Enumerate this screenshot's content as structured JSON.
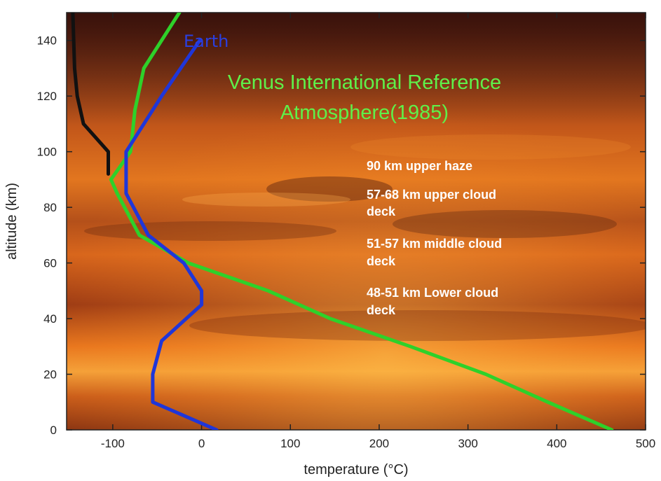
{
  "chart_data": {
    "type": "line",
    "xlabel": "temperature (°C)",
    "ylabel": "altitude (km)",
    "xlim": [
      -152,
      500
    ],
    "ylim": [
      0,
      150
    ],
    "x_ticks": [
      -100,
      0,
      100,
      200,
      300,
      400,
      500
    ],
    "y_ticks": [
      0,
      20,
      40,
      60,
      80,
      100,
      120,
      140
    ],
    "grid": false,
    "background": "photographic image of Venus clouds at sunset",
    "series": [
      {
        "name": "Venus International Reference Atmosphere(1985)",
        "color": "#2ed12a",
        "points": [
          [
            -25,
            150
          ],
          [
            -65,
            130
          ],
          [
            -75,
            115
          ],
          [
            -80,
            100
          ],
          [
            -102,
            90
          ],
          [
            -95,
            85
          ],
          [
            -70,
            70
          ],
          [
            -15,
            60
          ],
          [
            75,
            50
          ],
          [
            145,
            40
          ],
          [
            235,
            30
          ],
          [
            320,
            20
          ],
          [
            390,
            10
          ],
          [
            462,
            0
          ]
        ]
      },
      {
        "name": "Earth",
        "color": "#1f36d9",
        "points": [
          [
            -2,
            140
          ],
          [
            -45,
            120
          ],
          [
            -85,
            100
          ],
          [
            -85,
            85
          ],
          [
            -60,
            70
          ],
          [
            -20,
            60
          ],
          [
            0,
            50
          ],
          [
            0,
            45
          ],
          [
            -45,
            32
          ],
          [
            -55,
            20
          ],
          [
            -55,
            10
          ],
          [
            17,
            0
          ]
        ]
      },
      {
        "name": "",
        "color": "#111111",
        "points": [
          [
            -145,
            150
          ],
          [
            -143,
            130
          ],
          [
            -140,
            120
          ],
          [
            -133,
            110
          ],
          [
            -105,
            100
          ],
          [
            -105,
            92
          ]
        ]
      }
    ],
    "annotations": [
      {
        "id": "earth",
        "lines": [
          "Earth"
        ],
        "color": "#2a3fe0"
      },
      {
        "id": "venus",
        "lines": [
          "Venus International Reference",
          "Atmosphere(1985)"
        ],
        "color": "#5ff04a"
      },
      {
        "id": "haze",
        "lines": [
          "90 km upper haze"
        ],
        "color": "#ffffff"
      },
      {
        "id": "upper",
        "lines": [
          "57-68 km upper cloud",
          "deck"
        ],
        "color": "#ffffff"
      },
      {
        "id": "middle",
        "lines": [
          "51-57 km middle cloud",
          "deck"
        ],
        "color": "#ffffff"
      },
      {
        "id": "lower",
        "lines": [
          "48-51 km Lower cloud",
          "deck"
        ],
        "color": "#ffffff"
      }
    ]
  }
}
